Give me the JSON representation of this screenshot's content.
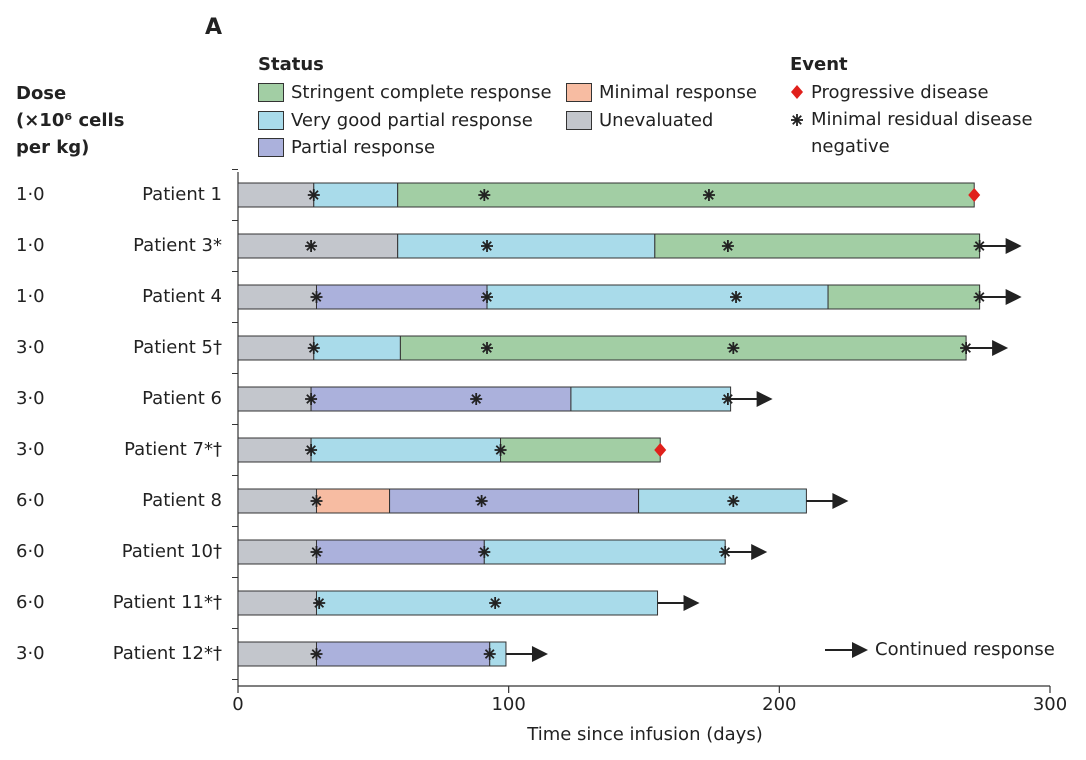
{
  "chart_data": {
    "type": "swimmer",
    "title": "A",
    "dose_header": [
      "Dose",
      "(×10⁶ cells",
      "per kg)"
    ],
    "status_title": "Status",
    "statuses": [
      {
        "name": "Stringent complete response",
        "color": "#a2cea4"
      },
      {
        "name": "Very good partial response",
        "color": "#a9dbea"
      },
      {
        "name": "Partial response",
        "color": "#abb1dc"
      },
      {
        "name": "Minimal response",
        "color": "#f7bca2"
      },
      {
        "name": "Unevaluated",
        "color": "#c3c6cc"
      }
    ],
    "event_title": "Event",
    "events": {
      "progression": "Progressive disease",
      "mrd": "Minimal residual disease negative",
      "continued": "Continued response"
    },
    "progression_color": "#e0201b",
    "xlabel": "Time since infusion (days)",
    "xlim": [
      0,
      300
    ],
    "xticks": [
      0,
      100,
      200,
      300
    ],
    "rows": [
      {
        "patient": "Patient 1",
        "dose": "1·0",
        "segments": [
          {
            "status": 4,
            "start": 0,
            "end": 28
          },
          {
            "status": 1,
            "start": 28,
            "end": 59
          },
          {
            "status": 0,
            "start": 59,
            "end": 272
          }
        ],
        "mrd_negative": [
          28,
          91,
          174
        ],
        "progression": 272,
        "continued": false
      },
      {
        "patient": "Patient 3*",
        "dose": "1·0",
        "segments": [
          {
            "status": 4,
            "start": 0,
            "end": 59
          },
          {
            "status": 1,
            "start": 59,
            "end": 154
          },
          {
            "status": 0,
            "start": 154,
            "end": 274
          }
        ],
        "mrd_negative": [
          27,
          92,
          181,
          274
        ],
        "progression": null,
        "continued": true
      },
      {
        "patient": "Patient 4",
        "dose": "1·0",
        "segments": [
          {
            "status": 4,
            "start": 0,
            "end": 29
          },
          {
            "status": 2,
            "start": 29,
            "end": 92
          },
          {
            "status": 1,
            "start": 92,
            "end": 218
          },
          {
            "status": 0,
            "start": 218,
            "end": 274
          }
        ],
        "mrd_negative": [
          29,
          92,
          184,
          274
        ],
        "progression": null,
        "continued": true
      },
      {
        "patient": "Patient 5†",
        "dose": "3·0",
        "segments": [
          {
            "status": 4,
            "start": 0,
            "end": 28
          },
          {
            "status": 1,
            "start": 28,
            "end": 60
          },
          {
            "status": 0,
            "start": 60,
            "end": 269
          }
        ],
        "mrd_negative": [
          28,
          92,
          183,
          269
        ],
        "progression": null,
        "continued": true
      },
      {
        "patient": "Patient 6",
        "dose": "3·0",
        "segments": [
          {
            "status": 4,
            "start": 0,
            "end": 27
          },
          {
            "status": 2,
            "start": 27,
            "end": 123
          },
          {
            "status": 1,
            "start": 123,
            "end": 182
          }
        ],
        "mrd_negative": [
          27,
          88,
          181
        ],
        "progression": null,
        "continued": true
      },
      {
        "patient": "Patient 7*†",
        "dose": "3·0",
        "segments": [
          {
            "status": 4,
            "start": 0,
            "end": 27
          },
          {
            "status": 1,
            "start": 27,
            "end": 97
          },
          {
            "status": 0,
            "start": 97,
            "end": 156
          }
        ],
        "mrd_negative": [
          27,
          97
        ],
        "progression": 156,
        "continued": false
      },
      {
        "patient": "Patient 8",
        "dose": "6·0",
        "segments": [
          {
            "status": 4,
            "start": 0,
            "end": 29
          },
          {
            "status": 3,
            "start": 29,
            "end": 56
          },
          {
            "status": 2,
            "start": 56,
            "end": 148
          },
          {
            "status": 1,
            "start": 148,
            "end": 210
          }
        ],
        "mrd_negative": [
          29,
          90,
          183
        ],
        "progression": null,
        "continued": true
      },
      {
        "patient": "Patient 10†",
        "dose": "6·0",
        "segments": [
          {
            "status": 4,
            "start": 0,
            "end": 29
          },
          {
            "status": 2,
            "start": 29,
            "end": 91
          },
          {
            "status": 1,
            "start": 91,
            "end": 180
          }
        ],
        "mrd_negative": [
          29,
          91,
          180
        ],
        "progression": null,
        "continued": true
      },
      {
        "patient": "Patient 11*†",
        "dose": "6·0",
        "segments": [
          {
            "status": 4,
            "start": 0,
            "end": 29
          },
          {
            "status": 1,
            "start": 29,
            "end": 155
          }
        ],
        "mrd_negative": [
          30,
          95
        ],
        "progression": null,
        "continued": true
      },
      {
        "patient": "Patient 12*†",
        "dose": "3·0",
        "segments": [
          {
            "status": 4,
            "start": 0,
            "end": 29
          },
          {
            "status": 2,
            "start": 29,
            "end": 93
          },
          {
            "status": 1,
            "start": 93,
            "end": 99
          }
        ],
        "mrd_negative": [
          29,
          93
        ],
        "progression": null,
        "continued": true
      }
    ]
  }
}
